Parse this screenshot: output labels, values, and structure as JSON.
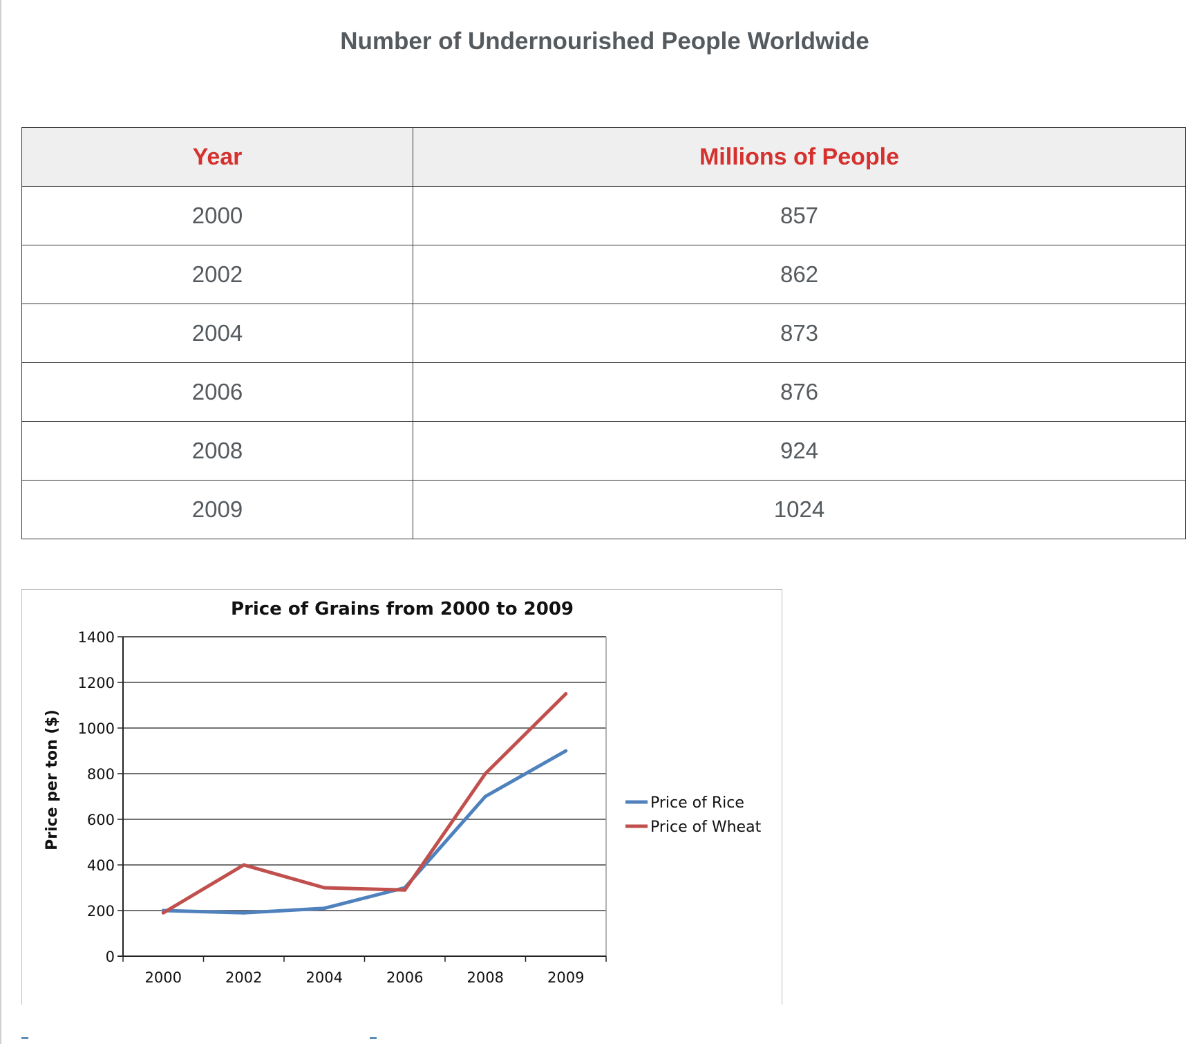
{
  "page_title": "Number of Undernourished People Worldwide",
  "table": {
    "headers": [
      "Year",
      "Millions of People"
    ],
    "rows": [
      [
        "2000",
        "857"
      ],
      [
        "2002",
        "862"
      ],
      [
        "2004",
        "873"
      ],
      [
        "2006",
        "876"
      ],
      [
        "2008",
        "924"
      ],
      [
        "2009",
        "1024"
      ]
    ]
  },
  "chart_data": {
    "type": "line",
    "title": "Price of Grains from 2000 to 2009",
    "xlabel": "",
    "ylabel": "Price per ton ($)",
    "categories": [
      "2000",
      "2002",
      "2004",
      "2006",
      "2008",
      "2009"
    ],
    "ylim": [
      0,
      1400
    ],
    "yticks": [
      0,
      200,
      400,
      600,
      800,
      1000,
      1200,
      1400
    ],
    "grid": true,
    "legend_position": "right",
    "series": [
      {
        "name": "Price of Rice",
        "color": "#4f81bd",
        "values": [
          200,
          190,
          210,
          300,
          700,
          900
        ]
      },
      {
        "name": "Price of Wheat",
        "color": "#c0504d",
        "values": [
          190,
          400,
          300,
          290,
          800,
          1150
        ]
      }
    ]
  }
}
